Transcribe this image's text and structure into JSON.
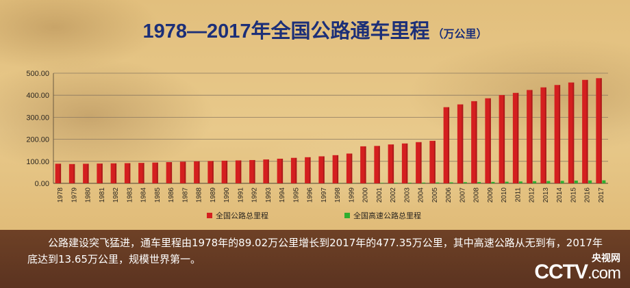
{
  "chart_data": {
    "type": "bar",
    "title": "1978—2017年全国公路通车里程",
    "unit_label": "（万公里）",
    "ylim": [
      0,
      500
    ],
    "yticks": [
      "0.00",
      "100.00",
      "200.00",
      "300.00",
      "400.00",
      "500.00"
    ],
    "grid": true,
    "legend_position": "bottom",
    "categories": [
      "1978",
      "1979",
      "1980",
      "1981",
      "1982",
      "1983",
      "1984",
      "1985",
      "1986",
      "1987",
      "1988",
      "1989",
      "1990",
      "1991",
      "1992",
      "1993",
      "1994",
      "1995",
      "1996",
      "1997",
      "1998",
      "1999",
      "2000",
      "2001",
      "2002",
      "2003",
      "2004",
      "2005",
      "2006",
      "2007",
      "2008",
      "2009",
      "2010",
      "2011",
      "2012",
      "2013",
      "2014",
      "2015",
      "2016",
      "2017"
    ],
    "series": [
      {
        "name": "全国公路总里程",
        "color": "#d41f1f",
        "values": [
          89.02,
          87.58,
          88.83,
          89.75,
          90.7,
          91.51,
          92.67,
          94.24,
          96.28,
          98.22,
          99.96,
          101.43,
          102.83,
          104.11,
          105.67,
          108.35,
          111.78,
          115.7,
          118.58,
          122.64,
          127.85,
          135.17,
          167.98,
          169.8,
          176.52,
          180.98,
          187.07,
          193.05,
          345.7,
          358.37,
          373.02,
          386.08,
          400.82,
          410.64,
          423.75,
          435.62,
          446.39,
          457.73,
          469.63,
          477.35
        ]
      },
      {
        "name": "全国高速公路总里程",
        "color": "#2fae2f",
        "values": [
          0,
          0,
          0,
          0,
          0,
          0,
          0,
          0,
          0,
          0,
          0.01,
          0.03,
          0.05,
          0.06,
          0.07,
          0.11,
          0.16,
          0.21,
          0.34,
          0.48,
          0.87,
          1.16,
          1.63,
          1.94,
          2.51,
          2.97,
          3.43,
          4.1,
          4.53,
          5.39,
          6.03,
          6.51,
          7.41,
          8.49,
          9.62,
          10.44,
          11.19,
          12.35,
          13.1,
          13.65
        ]
      }
    ]
  },
  "caption": "公路建设突飞猛进，通车里程由1978年的89.02万公里增长到2017年的477.35万公里，其中高速公路从无到有，2017年底达到13.65万公里，规模世界第一。",
  "logo": {
    "cn": "央视网",
    "en": "CCTV",
    "dotcom": ".com"
  }
}
